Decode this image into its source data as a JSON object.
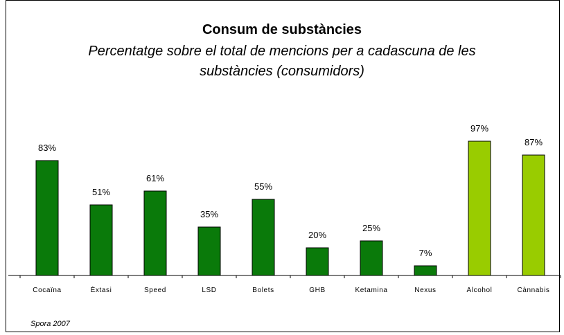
{
  "chart_data": {
    "type": "bar",
    "title": "Consum de substàncies",
    "subtitle": "Percentatge sobre el total de mencions per a cadascuna de les substàncies (consumidors)",
    "categories": [
      "Cocaïna",
      "Èxtasi",
      "Speed",
      "LSD",
      "Bolets",
      "GHB",
      "Ketamina",
      "Nexus",
      "Alcohol",
      "Cànnabis"
    ],
    "values": [
      83,
      51,
      61,
      35,
      55,
      20,
      25,
      7,
      97,
      87
    ],
    "data_labels": [
      "83%",
      "51%",
      "61%",
      "35%",
      "55%",
      "20%",
      "25%",
      "7%",
      "97%",
      "87%"
    ],
    "bar_colors": [
      "#0a7a0a",
      "#0a7a0a",
      "#0a7a0a",
      "#0a7a0a",
      "#0a7a0a",
      "#0a7a0a",
      "#0a7a0a",
      "#0a7a0a",
      "#99cc00",
      "#99cc00"
    ],
    "ylim": [
      0,
      100
    ],
    "grid": false,
    "legend": "none",
    "source": "Spora 2007"
  }
}
